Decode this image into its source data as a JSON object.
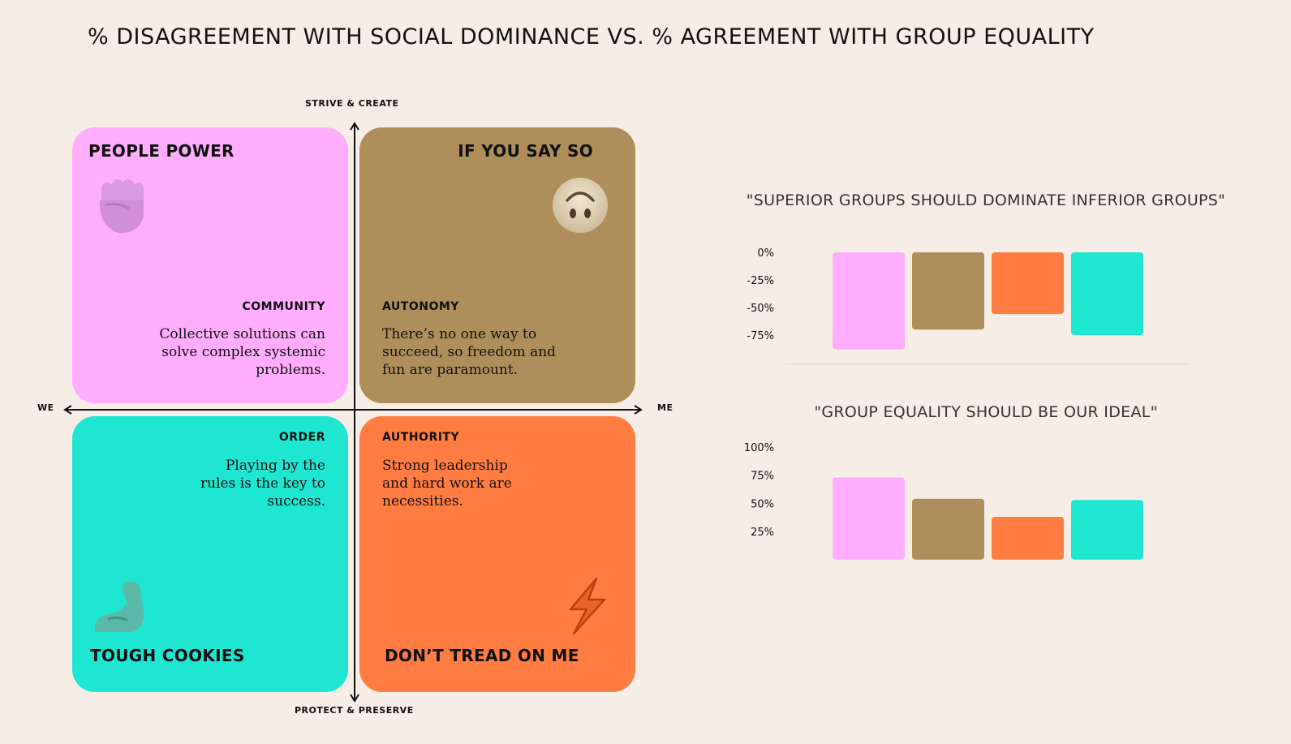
{
  "title": "% DISAGREEMENT WITH SOCIAL DOMINANCE VS. % AGREEMENT WITH GROUP EQUALITY",
  "axes": {
    "top": "STRIVE & CREATE",
    "bottom": "PROTECT & PRESERVE",
    "left": "WE",
    "right": "ME"
  },
  "quadrants": {
    "top_left": {
      "name": "PEOPLE POWER",
      "subtitle": "COMMUNITY",
      "description": "Collective solutions can solve complex systemic problems.",
      "icon": "raised-fist-icon",
      "color": "#ffadfc"
    },
    "top_right": {
      "name": "IF YOU SAY SO",
      "subtitle": "AUTONOMY",
      "description": "There’s no one way to succeed, so freedom and fun are paramount.",
      "icon": "upside-down-face-icon",
      "color": "#ae8f5c"
    },
    "bottom_left": {
      "name": "TOUGH COOKIES",
      "subtitle": "ORDER",
      "description": "Playing by the rules is the key to success.",
      "icon": "flexed-biceps-icon",
      "color": "#1ee6d0"
    },
    "bottom_right": {
      "name": "DON’T TREAD ON ME",
      "subtitle": "AUTHORITY",
      "description": "Strong leadership and hard work are necessities.",
      "icon": "lightning-bolt-icon",
      "color": "#ff7c42"
    }
  },
  "chart_data": [
    {
      "type": "bar",
      "title": "\"SUPERIOR GROUPS SHOULD DOMINATE INFERIOR GROUPS\"",
      "categories": [
        "PEOPLE POWER",
        "IF YOU SAY SO",
        "DON’T TREAD ON ME",
        "TOUGH COOKIES"
      ],
      "values": [
        -88,
        -70,
        -56,
        -75
      ],
      "colors": [
        "#ffadfc",
        "#ae8f5c",
        "#ff7c42",
        "#1ee6d0"
      ],
      "ylim": [
        -90,
        0
      ],
      "yticks": [
        0,
        -25,
        -50,
        -75
      ],
      "ytick_labels": [
        "0%",
        "-25%",
        "-50%",
        "-75%"
      ],
      "grid": false
    },
    {
      "type": "bar",
      "title": "\"GROUP EQUALITY SHOULD BE OUR IDEAL\"",
      "categories": [
        "PEOPLE POWER",
        "IF YOU SAY SO",
        "DON’T TREAD ON ME",
        "TOUGH COOKIES"
      ],
      "values": [
        73,
        54,
        38,
        53
      ],
      "colors": [
        "#ffadfc",
        "#ae8f5c",
        "#ff7c42",
        "#1ee6d0"
      ],
      "ylim": [
        0,
        100
      ],
      "yticks": [
        100,
        75,
        50,
        25
      ],
      "ytick_labels": [
        "100%",
        "75%",
        "50%",
        "25%"
      ],
      "grid": false
    }
  ]
}
